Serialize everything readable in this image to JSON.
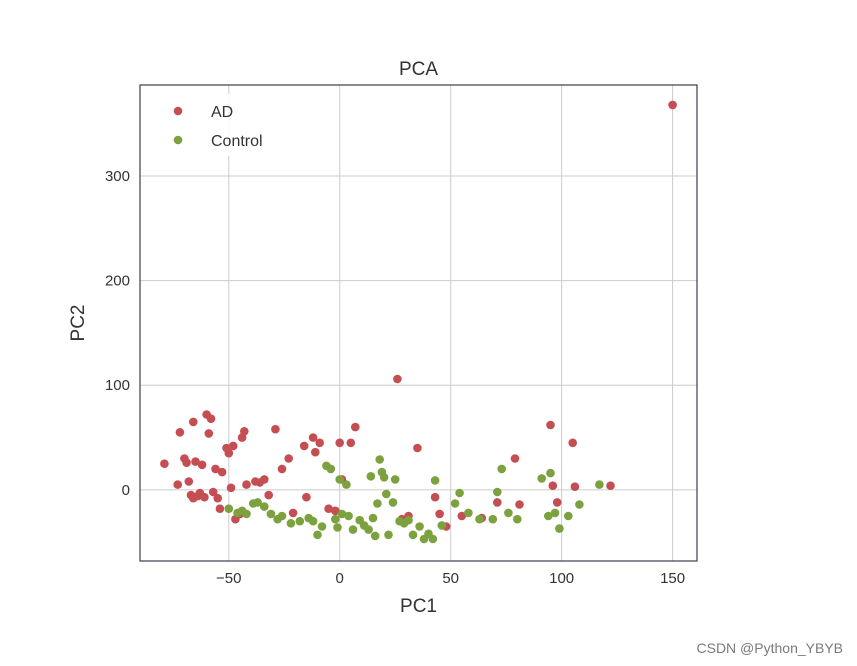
{
  "chart_data": {
    "type": "scatter",
    "title": "PCA",
    "xlabel": "PC1",
    "ylabel": "PC2",
    "xlim": [
      -90,
      161
    ],
    "ylim": [
      -68,
      387
    ],
    "xticks": [
      -50,
      0,
      50,
      100,
      150
    ],
    "yticks": [
      0,
      100,
      200,
      300
    ],
    "grid": true,
    "legend_position": "upper-left",
    "series": [
      {
        "name": "AD",
        "color": "#c44e52",
        "points": [
          [
            -79,
            25
          ],
          [
            -73,
            5
          ],
          [
            -72,
            55
          ],
          [
            -70,
            30
          ],
          [
            -69,
            26
          ],
          [
            -68,
            8
          ],
          [
            -67,
            -5
          ],
          [
            -66,
            -8
          ],
          [
            -65,
            27
          ],
          [
            -66,
            65
          ],
          [
            -64,
            -6
          ],
          [
            -63,
            -3
          ],
          [
            -62,
            24
          ],
          [
            -61,
            -7
          ],
          [
            -60,
            72
          ],
          [
            -59,
            54
          ],
          [
            -58,
            68
          ],
          [
            -57,
            -2
          ],
          [
            -56,
            20
          ],
          [
            -55,
            -8
          ],
          [
            -54,
            -18
          ],
          [
            -53,
            17
          ],
          [
            -51,
            40
          ],
          [
            -50,
            35
          ],
          [
            -49,
            2
          ],
          [
            -48,
            42
          ],
          [
            -47,
            -28
          ],
          [
            -45,
            -23
          ],
          [
            -44,
            50
          ],
          [
            -43,
            56
          ],
          [
            -42,
            5
          ],
          [
            -38,
            8
          ],
          [
            -36,
            7
          ],
          [
            -34,
            10
          ],
          [
            -32,
            -5
          ],
          [
            -29,
            58
          ],
          [
            -26,
            20
          ],
          [
            -23,
            30
          ],
          [
            -21,
            -22
          ],
          [
            -16,
            42
          ],
          [
            -15,
            -7
          ],
          [
            -12,
            50
          ],
          [
            -11,
            36
          ],
          [
            -9,
            45
          ],
          [
            -5,
            -18
          ],
          [
            -2,
            -20
          ],
          [
            0,
            45
          ],
          [
            1,
            10
          ],
          [
            5,
            45
          ],
          [
            7,
            60
          ],
          [
            26,
            106
          ],
          [
            28,
            -28
          ],
          [
            31,
            -25
          ],
          [
            35,
            40
          ],
          [
            43,
            -7
          ],
          [
            45,
            -23
          ],
          [
            48,
            -35
          ],
          [
            55,
            -25
          ],
          [
            64,
            -27
          ],
          [
            71,
            -12
          ],
          [
            79,
            30
          ],
          [
            81,
            -14
          ],
          [
            95,
            62
          ],
          [
            96,
            4
          ],
          [
            98,
            -12
          ],
          [
            105,
            45
          ],
          [
            106,
            3
          ],
          [
            122,
            4
          ],
          [
            150,
            368
          ]
        ]
      },
      {
        "name": "Control",
        "color": "#7ba23f",
        "points": [
          [
            -50,
            -18
          ],
          [
            -46,
            -22
          ],
          [
            -44,
            -20
          ],
          [
            -42,
            -23
          ],
          [
            -39,
            -13
          ],
          [
            -37,
            -12
          ],
          [
            -34,
            -16
          ],
          [
            -31,
            -23
          ],
          [
            -28,
            -28
          ],
          [
            -26,
            -25
          ],
          [
            -22,
            -32
          ],
          [
            -18,
            -30
          ],
          [
            -14,
            -27
          ],
          [
            -12,
            -30
          ],
          [
            -10,
            -43
          ],
          [
            -8,
            -35
          ],
          [
            -6,
            23
          ],
          [
            -4,
            20
          ],
          [
            -2,
            -28
          ],
          [
            -1,
            -36
          ],
          [
            0,
            10
          ],
          [
            1,
            -23
          ],
          [
            3,
            5
          ],
          [
            4,
            -25
          ],
          [
            6,
            -38
          ],
          [
            9,
            -29
          ],
          [
            11,
            -34
          ],
          [
            13,
            -38
          ],
          [
            14,
            13
          ],
          [
            15,
            -27
          ],
          [
            16,
            -44
          ],
          [
            17,
            -13
          ],
          [
            18,
            29
          ],
          [
            19,
            17
          ],
          [
            20,
            12
          ],
          [
            21,
            -4
          ],
          [
            22,
            -43
          ],
          [
            24,
            -12
          ],
          [
            25,
            10
          ],
          [
            27,
            -30
          ],
          [
            29,
            -32
          ],
          [
            31,
            -29
          ],
          [
            33,
            -43
          ],
          [
            36,
            -35
          ],
          [
            38,
            -47
          ],
          [
            40,
            -42
          ],
          [
            42,
            -47
          ],
          [
            43,
            9
          ],
          [
            46,
            -34
          ],
          [
            52,
            -13
          ],
          [
            54,
            -3
          ],
          [
            58,
            -22
          ],
          [
            63,
            -28
          ],
          [
            69,
            -28
          ],
          [
            71,
            -2
          ],
          [
            73,
            20
          ],
          [
            76,
            -22
          ],
          [
            80,
            -28
          ],
          [
            91,
            11
          ],
          [
            94,
            -25
          ],
          [
            95,
            16
          ],
          [
            97,
            -22
          ],
          [
            99,
            -37
          ],
          [
            103,
            -25
          ],
          [
            108,
            -14
          ],
          [
            117,
            5
          ]
        ]
      }
    ]
  },
  "watermark": "CSDN @Python_YBYB"
}
